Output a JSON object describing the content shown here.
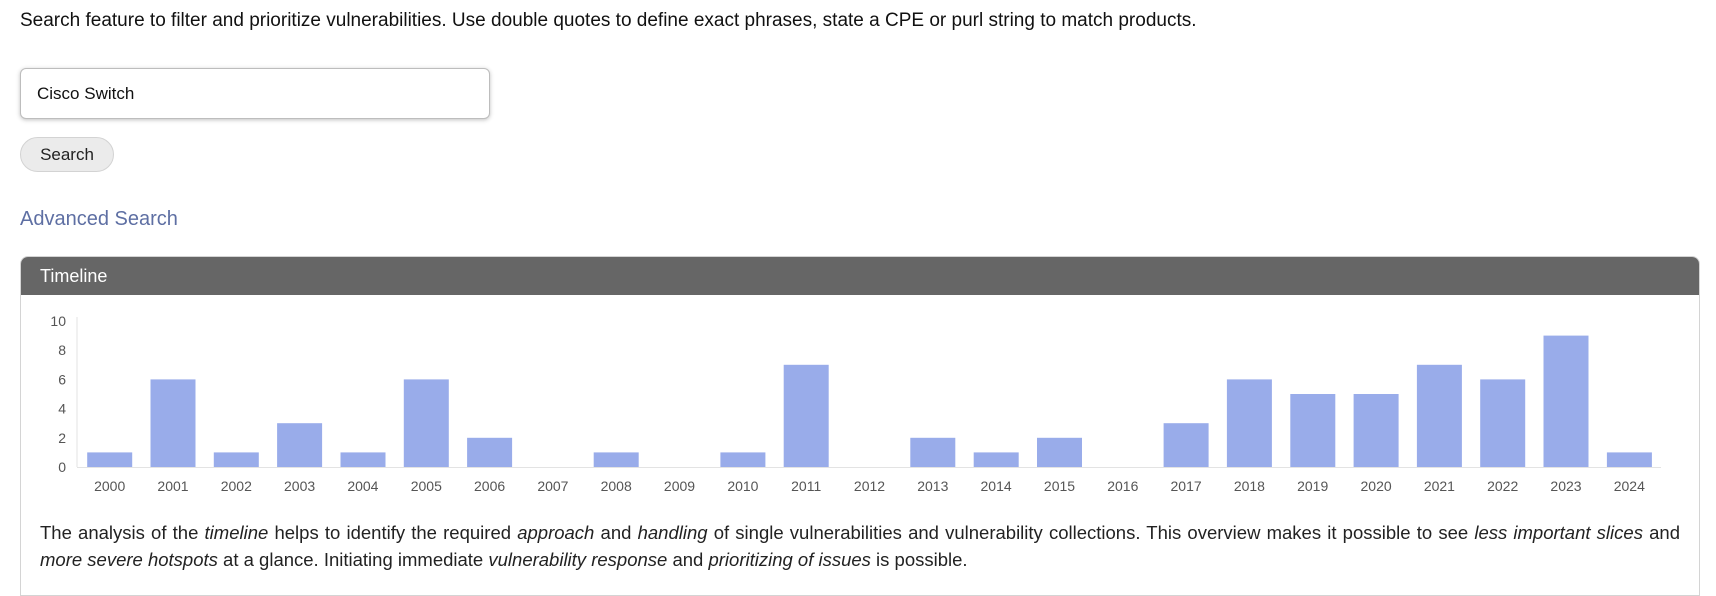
{
  "intro_text": "Search feature to filter and prioritize vulnerabilities. Use double quotes to define exact phrases, state a CPE or purl string to match products.",
  "search": {
    "value": "Cisco Switch",
    "button_label": "Search"
  },
  "advanced_search_label": "Advanced Search",
  "timeline": {
    "title": "Timeline",
    "analysis": {
      "t1": "The analysis of the ",
      "e1": "timeline",
      "t2": " helps to identify the required ",
      "e2": "approach",
      "t3": " and ",
      "e3": "handling",
      "t4": " of single vulnerabilities and vulnerability collections. This overview makes it possible to see ",
      "e4": "less important slices",
      "t5": " and ",
      "e5": "more severe hotspots",
      "t6": " at a glance. Initiating immediate ",
      "e6": "vulnerability response",
      "t7": " and ",
      "e7": "prioritizing of issues",
      "t8": " is possible."
    }
  },
  "chart_data": {
    "type": "bar",
    "categories": [
      "2000",
      "2001",
      "2002",
      "2003",
      "2004",
      "2005",
      "2006",
      "2007",
      "2008",
      "2009",
      "2010",
      "2011",
      "2012",
      "2013",
      "2014",
      "2015",
      "2016",
      "2017",
      "2018",
      "2019",
      "2020",
      "2021",
      "2022",
      "2023",
      "2024"
    ],
    "values": [
      1,
      6,
      1,
      3,
      1,
      6,
      2,
      0,
      1,
      0,
      1,
      7,
      0,
      2,
      1,
      2,
      0,
      3,
      6,
      5,
      5,
      7,
      6,
      9,
      1
    ],
    "yticks": [
      0,
      2,
      4,
      6,
      8,
      10
    ],
    "ylim": [
      0,
      10
    ],
    "bar_color": "#99acea",
    "grid": false,
    "legend": "none"
  },
  "colors": {
    "header_bg": "#666666",
    "link": "#5e6fa3",
    "bar": "#99acea"
  }
}
